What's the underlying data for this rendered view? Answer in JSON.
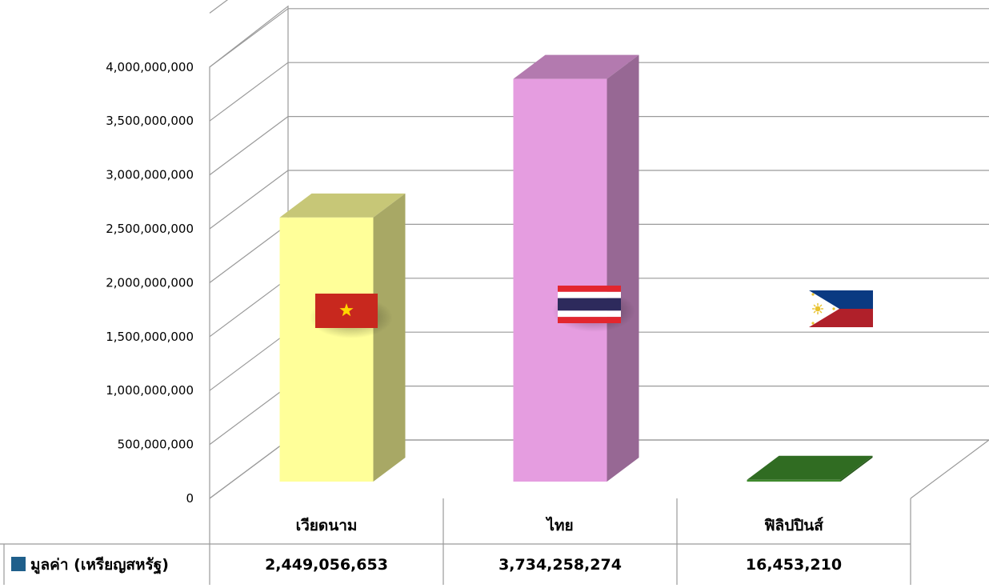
{
  "chart_data": {
    "type": "bar",
    "categories": [
      "เวียดนาม",
      "ไทย",
      "ฟิลิปปินส์"
    ],
    "series": [
      {
        "name": "มูลค่า (เหรียญสหรัฐ)",
        "values": [
          2449056653,
          3734258274,
          16453210
        ],
        "colors": [
          "#ffff99",
          "#e59de0",
          "#3e8a2c"
        ],
        "display_values": [
          "2,449,056,653",
          "3,734,258,274",
          "16,453,210"
        ]
      }
    ],
    "ylim": [
      0,
      4000000000
    ],
    "y_ticks": [
      0,
      500000000,
      1000000000,
      1500000000,
      2000000000,
      2500000000,
      3000000000,
      3500000000,
      4000000000
    ],
    "y_tick_labels": [
      "0",
      "500,000,000",
      "1,000,000,000",
      "1,500,000,000",
      "2,000,000,000",
      "2,500,000,000",
      "3,000,000,000",
      "3,500,000,000",
      "4,000,000,000"
    ],
    "grid": true,
    "style": "3d-column",
    "legend_marker_color": "#1f5f8b",
    "data_table": true,
    "flags": [
      "vietnam-flag",
      "thailand-flag",
      "philippines-flag"
    ]
  }
}
